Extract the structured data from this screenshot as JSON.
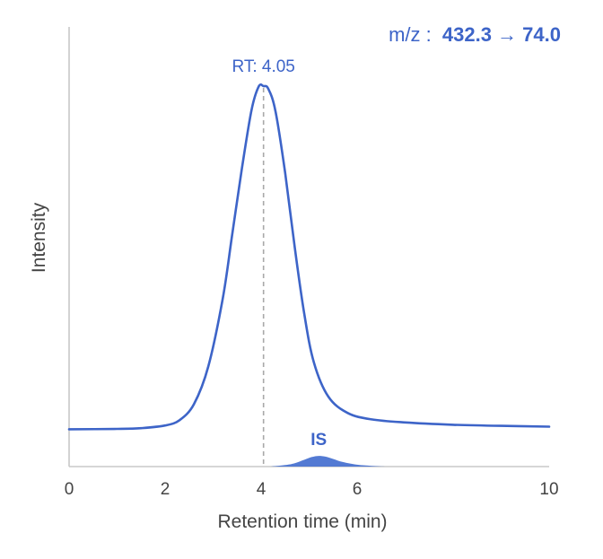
{
  "colors": {
    "accent": "#3d64c8",
    "is_fill": "#4a73d1",
    "axis": "#c8c8c8",
    "text": "#444444",
    "rt_line": "#a8a8a8"
  },
  "transition": {
    "prefix": "m/z :",
    "value": "432.3 → 74.0"
  },
  "chart_data": {
    "type": "line",
    "title": "",
    "xlabel": "Retention time (min)",
    "ylabel": "Intensity",
    "xlim": [
      0,
      10
    ],
    "ylim": [
      0,
      100
    ],
    "x_ticks": [
      "0",
      "2",
      "4",
      "6",
      "10"
    ],
    "x_tick_values": [
      0,
      2,
      4,
      6,
      10
    ],
    "y_ticks_shown": false,
    "grid": false,
    "legend": "none",
    "series": [
      {
        "role": "analyte",
        "style": "line",
        "x": [
          0,
          1,
          1.5,
          2,
          2.3,
          2.6,
          2.9,
          3.2,
          3.4,
          3.6,
          3.8,
          3.95,
          4.05,
          4.15,
          4.3,
          4.5,
          4.7,
          4.9,
          5.1,
          5.4,
          5.8,
          6.3,
          7,
          8,
          9,
          10
        ],
        "y": [
          9.8,
          9.9,
          10.1,
          10.8,
          12.2,
          16.4,
          26.3,
          44.1,
          61.2,
          78.4,
          93.7,
          99.9,
          100,
          99.3,
          93.4,
          77.2,
          57.6,
          40.0,
          27.3,
          18.4,
          14.1,
          12.4,
          11.6,
          11.0,
          10.7,
          10.5
        ]
      },
      {
        "role": "internal-standard",
        "name": "IS",
        "style": "filled-area",
        "x": [
          4.2,
          4.5,
          4.7,
          4.9,
          5.05,
          5.2,
          5.35,
          5.5,
          5.7,
          6.0,
          6.3,
          6.6
        ],
        "y": [
          0,
          0.4,
          0.9,
          1.8,
          2.5,
          2.8,
          2.6,
          2.0,
          1.2,
          0.5,
          0.2,
          0
        ]
      }
    ],
    "annotations": [
      {
        "text": "RT: 4.05",
        "x": 4.05,
        "y": 100,
        "kind": "peak-marker"
      },
      {
        "text": "IS",
        "x": 5.2,
        "y": 2.8,
        "kind": "label"
      }
    ]
  }
}
